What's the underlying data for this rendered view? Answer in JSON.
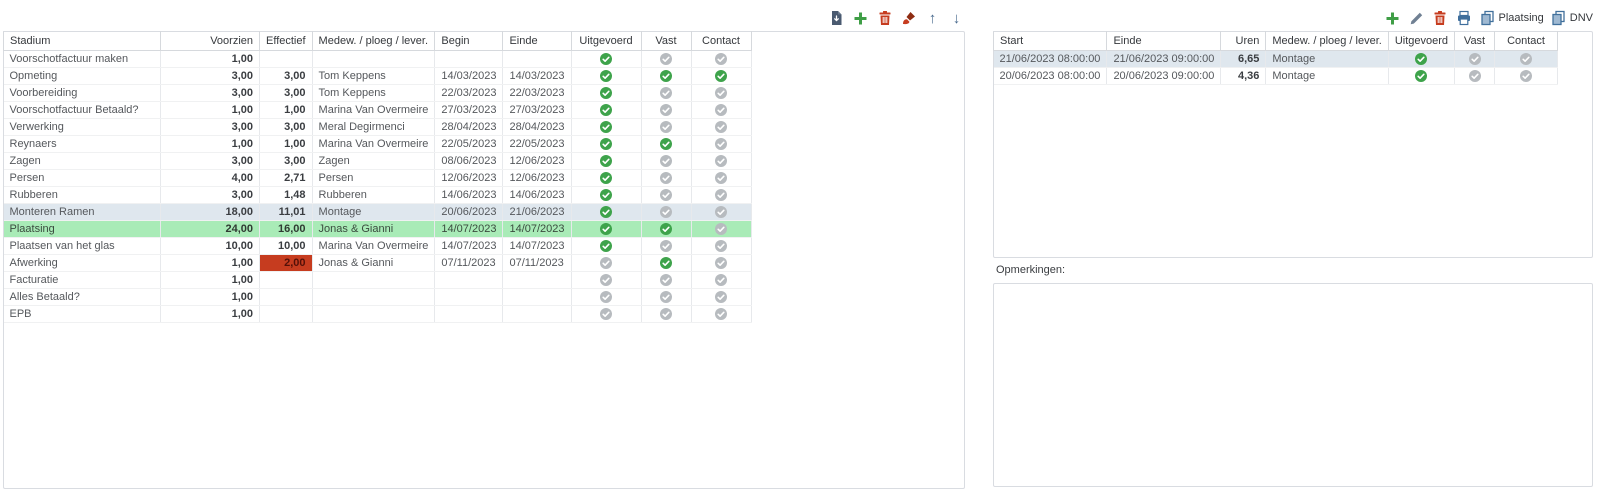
{
  "toolbar_left": {
    "icons": [
      "file-export",
      "add",
      "delete",
      "clear-format",
      "move-up",
      "move-down"
    ]
  },
  "toolbar_right": {
    "icons": [
      "add",
      "edit",
      "delete",
      "print"
    ],
    "copy_plaatsing_label": "Plaatsing",
    "copy_dnv_label": "DNV"
  },
  "stages_table": {
    "columns": [
      "Stadium",
      "Voorzien",
      "Effectief",
      "Medew. / ploeg / lever.",
      "Begin",
      "Einde",
      "Uitgevoerd",
      "Vast",
      "Contact"
    ],
    "rows": [
      {
        "stadium": "Voorschotfactuur maken",
        "voorzien": "1,00",
        "effectief": "",
        "medew": "",
        "begin": "",
        "einde": "",
        "uitgevoerd": true,
        "vast": false,
        "contact": false,
        "highlight": "",
        "alert_effectief": false
      },
      {
        "stadium": "Opmeting",
        "voorzien": "3,00",
        "effectief": "3,00",
        "medew": "Tom Keppens",
        "begin": "14/03/2023",
        "einde": "14/03/2023",
        "uitgevoerd": true,
        "vast": true,
        "contact": true,
        "highlight": "",
        "alert_effectief": false
      },
      {
        "stadium": "Voorbereiding",
        "voorzien": "3,00",
        "effectief": "3,00",
        "medew": "Tom Keppens",
        "begin": "22/03/2023",
        "einde": "22/03/2023",
        "uitgevoerd": true,
        "vast": false,
        "contact": false,
        "highlight": "",
        "alert_effectief": false
      },
      {
        "stadium": "Voorschotfactuur Betaald?",
        "voorzien": "1,00",
        "effectief": "1,00",
        "medew": "Marina Van Overmeire",
        "begin": "27/03/2023",
        "einde": "27/03/2023",
        "uitgevoerd": true,
        "vast": false,
        "contact": false,
        "highlight": "",
        "alert_effectief": false
      },
      {
        "stadium": "Verwerking",
        "voorzien": "3,00",
        "effectief": "3,00",
        "medew": "Meral Degirmenci",
        "begin": "28/04/2023",
        "einde": "28/04/2023",
        "uitgevoerd": true,
        "vast": false,
        "contact": false,
        "highlight": "",
        "alert_effectief": false
      },
      {
        "stadium": "Reynaers",
        "voorzien": "1,00",
        "effectief": "1,00",
        "medew": "Marina Van Overmeire",
        "begin": "22/05/2023",
        "einde": "22/05/2023",
        "uitgevoerd": true,
        "vast": true,
        "contact": false,
        "highlight": "",
        "alert_effectief": false
      },
      {
        "stadium": "Zagen",
        "voorzien": "3,00",
        "effectief": "3,00",
        "medew": "Zagen",
        "begin": "08/06/2023",
        "einde": "12/06/2023",
        "uitgevoerd": true,
        "vast": false,
        "contact": false,
        "highlight": "",
        "alert_effectief": false
      },
      {
        "stadium": "Persen",
        "voorzien": "4,00",
        "effectief": "2,71",
        "medew": "Persen",
        "begin": "12/06/2023",
        "einde": "12/06/2023",
        "uitgevoerd": true,
        "vast": false,
        "contact": false,
        "highlight": "",
        "alert_effectief": false
      },
      {
        "stadium": "Rubberen",
        "voorzien": "3,00",
        "effectief": "1,48",
        "medew": "Rubberen",
        "begin": "14/06/2023",
        "einde": "14/06/2023",
        "uitgevoerd": true,
        "vast": false,
        "contact": false,
        "highlight": "",
        "alert_effectief": false
      },
      {
        "stadium": "Monteren Ramen",
        "voorzien": "18,00",
        "effectief": "11,01",
        "medew": "Montage",
        "begin": "20/06/2023",
        "einde": "21/06/2023",
        "uitgevoerd": true,
        "vast": false,
        "contact": false,
        "highlight": "blue",
        "alert_effectief": false
      },
      {
        "stadium": "Plaatsing",
        "voorzien": "24,00",
        "effectief": "16,00",
        "medew": "Jonas & Gianni",
        "begin": "14/07/2023",
        "einde": "14/07/2023",
        "uitgevoerd": true,
        "vast": true,
        "contact": false,
        "highlight": "green",
        "alert_effectief": false
      },
      {
        "stadium": "Plaatsen van het glas",
        "voorzien": "10,00",
        "effectief": "10,00",
        "medew": "Marina Van Overmeire",
        "begin": "14/07/2023",
        "einde": "14/07/2023",
        "uitgevoerd": true,
        "vast": false,
        "contact": false,
        "highlight": "",
        "alert_effectief": false
      },
      {
        "stadium": "Afwerking",
        "voorzien": "1,00",
        "effectief": "2,00",
        "medew": "Jonas & Gianni",
        "begin": "07/11/2023",
        "einde": "07/11/2023",
        "uitgevoerd": false,
        "vast": true,
        "contact": false,
        "highlight": "",
        "alert_effectief": true
      },
      {
        "stadium": "Facturatie",
        "voorzien": "1,00",
        "effectief": "",
        "medew": "",
        "begin": "",
        "einde": "",
        "uitgevoerd": false,
        "vast": false,
        "contact": false,
        "highlight": "",
        "alert_effectief": false
      },
      {
        "stadium": "Alles Betaald?",
        "voorzien": "1,00",
        "effectief": "",
        "medew": "",
        "begin": "",
        "einde": "",
        "uitgevoerd": false,
        "vast": false,
        "contact": false,
        "highlight": "",
        "alert_effectief": false
      },
      {
        "stadium": "EPB",
        "voorzien": "1,00",
        "effectief": "",
        "medew": "",
        "begin": "",
        "einde": "",
        "uitgevoerd": false,
        "vast": false,
        "contact": false,
        "highlight": "",
        "alert_effectief": false
      }
    ]
  },
  "hours_table": {
    "columns": [
      "Start",
      "Einde",
      "Uren",
      "Medew. / ploeg / lever.",
      "Uitgevoerd",
      "Vast",
      "Contact"
    ],
    "rows": [
      {
        "start": "21/06/2023 08:00:00",
        "einde": "21/06/2023 09:00:00",
        "uren": "6,65",
        "medew": "Montage",
        "uitgevoerd": true,
        "vast": false,
        "contact": false,
        "selected": true
      },
      {
        "start": "20/06/2023 08:00:00",
        "einde": "20/06/2023 09:00:00",
        "uren": "4,36",
        "medew": "Montage",
        "uitgevoerd": true,
        "vast": false,
        "contact": false,
        "selected": false
      }
    ]
  },
  "notes": {
    "label": "Opmerkingen:",
    "value": ""
  },
  "colors": {
    "accent_green": "#3ea34b",
    "check_off_gray": "#b7bbbf",
    "alert_red": "#c63c1f",
    "selection_blue": "#dfe7ee",
    "selection_green": "#a9ebb7",
    "toolbar_blue": "#4a6b8f"
  }
}
